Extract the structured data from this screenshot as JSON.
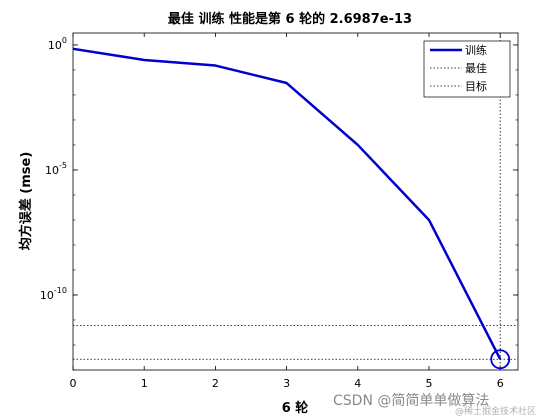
{
  "chart_data": {
    "type": "line",
    "title": "最佳 训练 性能是第 6 轮的 2.6987e-13",
    "xlabel": "6 轮",
    "ylabel": "均方误差 (mse)",
    "xlim": [
      0,
      6.25
    ],
    "ylim": [
      1e-13,
      3
    ],
    "yscale": "log",
    "xticks": [
      0,
      1,
      2,
      3,
      4,
      5,
      6
    ],
    "yticks": [
      {
        "value": 1,
        "base": "10",
        "exp": "0"
      },
      {
        "value": 1e-05,
        "base": "10",
        "exp": "-5"
      },
      {
        "value": 1e-10,
        "base": "10",
        "exp": "-10"
      }
    ],
    "grid": false,
    "legend_position": "top-right",
    "series": [
      {
        "name": "训练",
        "color": "#0000cc",
        "x": [
          0,
          1,
          2,
          3,
          4,
          5,
          6
        ],
        "y": [
          0.7,
          0.25,
          0.15,
          0.03,
          0.0001,
          1e-07,
          2.6987e-13
        ]
      }
    ],
    "best": {
      "name": "最佳",
      "value": 2.6987e-13,
      "epoch": 6,
      "marker_color": "#0000cc"
    },
    "goal": {
      "name": "目标",
      "value": 6e-12
    },
    "legend_entries": [
      "训练",
      "最佳",
      "目标"
    ]
  },
  "watermark": {
    "main": "CSDN @简简单单做算法",
    "sub": "@稀土掘金技术社区"
  }
}
